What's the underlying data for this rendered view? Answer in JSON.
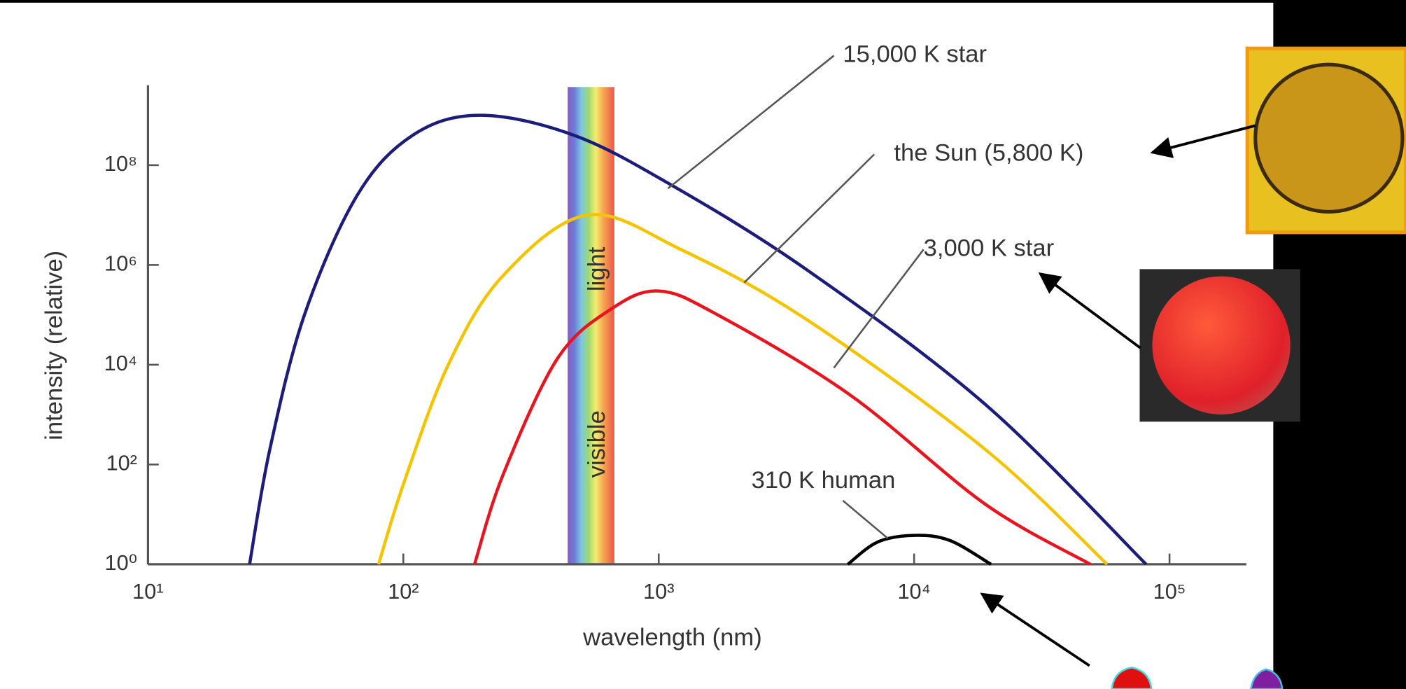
{
  "chart_data": {
    "type": "line",
    "xlabel": "wavelength (nm)",
    "ylabel": "intensity (relative)",
    "xscale": "log",
    "yscale": "log",
    "xlim": [
      10,
      200000
    ],
    "ylim": [
      1,
      4000000000
    ],
    "xticks": [
      {
        "value": 10,
        "label": "10¹"
      },
      {
        "value": 100,
        "label": "10²"
      },
      {
        "value": 1000,
        "label": "10³"
      },
      {
        "value": 10000,
        "label": "10⁴"
      },
      {
        "value": 100000,
        "label": "10⁵"
      }
    ],
    "yticks": [
      {
        "value": 1,
        "label": "10⁰"
      },
      {
        "value": 100,
        "label": "10²"
      },
      {
        "value": 10000,
        "label": "10⁴"
      },
      {
        "value": 1000000,
        "label": "10⁶"
      },
      {
        "value": 100000000,
        "label": "10⁸"
      }
    ],
    "visible_band": {
      "range": [
        440,
        670
      ],
      "labels": [
        "visible",
        "light"
      ]
    },
    "series": [
      {
        "name": "15,000 K star",
        "color": "#1c1c7a",
        "x": [
          25,
          30,
          41,
          66,
          109,
          200,
          464,
          1120,
          3800,
          19000,
          81000
        ],
        "values": [
          1,
          200,
          100000,
          25000000,
          400000000,
          1000000000,
          400000000,
          40000000,
          800000,
          1600,
          1
        ]
      },
      {
        "name": "the Sun (5,800 K)",
        "color": "#f5c400",
        "x": [
          80,
          100,
          150,
          245,
          525,
          1230,
          3800,
          19000,
          57000
        ],
        "values": [
          1,
          40,
          10000,
          600000,
          10000000,
          2000000,
          80000,
          200,
          1
        ]
      },
      {
        "name": "3,000 K star",
        "color": "#e8141e",
        "x": [
          190,
          245,
          400,
          650,
          1000,
          1700,
          5600,
          19000,
          49000
        ],
        "values": [
          1,
          60,
          13000,
          130000,
          300000,
          100000,
          2500,
          16,
          1
        ]
      },
      {
        "name": "310 K human",
        "color": "#000000",
        "x": [
          5500,
          7200,
          10000,
          13800,
          20000
        ],
        "values": [
          1,
          2.8,
          3.8,
          3,
          1
        ]
      }
    ]
  }
}
